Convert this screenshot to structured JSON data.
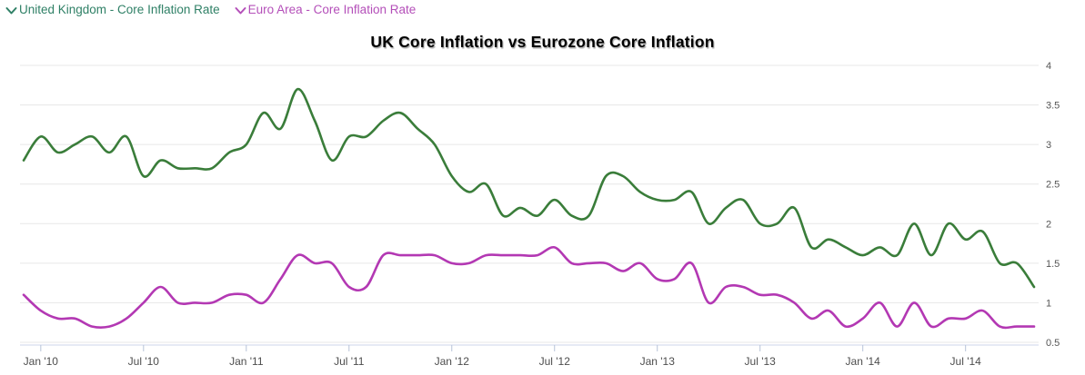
{
  "title": "UK Core Inflation vs Eurozone Core Inflation",
  "legend": {
    "items": [
      {
        "label": "United Kingdom - Core Inflation Rate",
        "color": "#2f8066"
      },
      {
        "label": "Euro Area - Core Inflation Rate",
        "color": "#b44fb9"
      }
    ]
  },
  "chart_data": {
    "type": "line",
    "title": "UK Core Inflation vs Eurozone Core Inflation",
    "xlabel": "",
    "ylabel": "",
    "x": [
      "Dec '09",
      "Jan '10",
      "Feb '10",
      "Mar '10",
      "Apr '10",
      "May '10",
      "Jun '10",
      "Jul '10",
      "Aug '10",
      "Sep '10",
      "Oct '10",
      "Nov '10",
      "Dec '10",
      "Jan '11",
      "Feb '11",
      "Mar '11",
      "Apr '11",
      "May '11",
      "Jun '11",
      "Jul '11",
      "Aug '11",
      "Sep '11",
      "Oct '11",
      "Nov '11",
      "Dec '11",
      "Jan '12",
      "Feb '12",
      "Mar '12",
      "Apr '12",
      "May '12",
      "Jun '12",
      "Jul '12",
      "Aug '12",
      "Sep '12",
      "Oct '12",
      "Nov '12",
      "Dec '12",
      "Jan '13",
      "Feb '13",
      "Mar '13",
      "Apr '13",
      "May '13",
      "Jun '13",
      "Jul '13",
      "Aug '13",
      "Sep '13",
      "Oct '13",
      "Nov '13",
      "Dec '13",
      "Jan '14",
      "Feb '14",
      "Mar '14",
      "Apr '14",
      "May '14",
      "Jun '14",
      "Jul '14",
      "Aug '14",
      "Sep '14",
      "Oct '14",
      "Nov '14"
    ],
    "series": [
      {
        "name": "United Kingdom - Core Inflation Rate",
        "color": "#3a7d3a",
        "values": [
          2.8,
          3.1,
          2.9,
          3.0,
          3.1,
          2.9,
          3.1,
          2.6,
          2.8,
          2.7,
          2.7,
          2.7,
          2.9,
          3.0,
          3.4,
          3.2,
          3.7,
          3.3,
          2.8,
          3.1,
          3.1,
          3.3,
          3.4,
          3.2,
          3.0,
          2.6,
          2.4,
          2.5,
          2.1,
          2.2,
          2.1,
          2.3,
          2.1,
          2.1,
          2.6,
          2.6,
          2.4,
          2.3,
          2.3,
          2.4,
          2.0,
          2.2,
          2.3,
          2.0,
          2.0,
          2.2,
          1.7,
          1.8,
          1.7,
          1.6,
          1.7,
          1.6,
          2.0,
          1.6,
          2.0,
          1.8,
          1.9,
          1.5,
          1.5,
          1.2
        ]
      },
      {
        "name": "Euro Area - Core Inflation Rate",
        "color": "#b338b3",
        "values": [
          1.1,
          0.9,
          0.8,
          0.8,
          0.7,
          0.7,
          0.8,
          1.0,
          1.2,
          1.0,
          1.0,
          1.0,
          1.1,
          1.1,
          1.0,
          1.3,
          1.6,
          1.5,
          1.5,
          1.2,
          1.2,
          1.6,
          1.6,
          1.6,
          1.6,
          1.5,
          1.5,
          1.6,
          1.6,
          1.6,
          1.6,
          1.7,
          1.5,
          1.5,
          1.5,
          1.4,
          1.5,
          1.3,
          1.3,
          1.5,
          1.0,
          1.2,
          1.2,
          1.1,
          1.1,
          1.0,
          0.8,
          0.9,
          0.7,
          0.8,
          1.0,
          0.7,
          1.0,
          0.7,
          0.8,
          0.8,
          0.9,
          0.7,
          0.7,
          0.7
        ]
      }
    ],
    "xticks": [
      "Jan '10",
      "Jul '10",
      "Jan '11",
      "Jul '11",
      "Jan '12",
      "Jul '12",
      "Jan '13",
      "Jul '13",
      "Jan '14",
      "Jul '14"
    ],
    "yticks": [
      0.5,
      1,
      1.5,
      2,
      2.5,
      3,
      3.5,
      4
    ],
    "ylim": [
      0.45,
      4.1
    ],
    "grid": "horizontal",
    "legend_position": "top-left",
    "y_axis_side": "right"
  },
  "colors": {
    "background": "#ffffff",
    "gridline": "#e7e7e7",
    "axis": "#ccd6eb"
  }
}
